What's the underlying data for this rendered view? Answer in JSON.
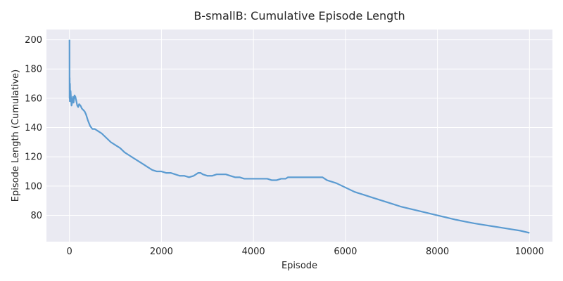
{
  "chart_data": {
    "type": "line",
    "title": "B-smallB: Cumulative Episode Length",
    "xlabel": "Episode",
    "ylabel": "Episode Length (Cumulative)",
    "xlim": [
      -500,
      10500
    ],
    "ylim": [
      62,
      207
    ],
    "xticks": [
      0,
      2000,
      4000,
      6000,
      8000,
      10000
    ],
    "xtick_labels": [
      "0",
      "2000",
      "4000",
      "6000",
      "8000",
      "10000"
    ],
    "yticks": [
      80,
      100,
      120,
      140,
      160,
      180,
      200
    ],
    "ytick_labels": [
      "80",
      "100",
      "120",
      "140",
      "160",
      "180",
      "200"
    ],
    "grid": true,
    "legend": "none",
    "series_color": "#5b9bd1",
    "background_color": "#eaeaf2",
    "grid_color": "#ffffff",
    "series": [
      {
        "x": [
          1,
          3,
          5,
          8,
          12,
          18,
          25,
          35,
          45,
          60,
          75,
          90,
          110,
          130,
          150,
          170,
          190,
          210,
          240,
          270,
          300,
          330,
          360,
          400,
          450,
          500,
          550,
          600,
          650,
          700,
          800,
          900,
          1000,
          1100,
          1200,
          1300,
          1400,
          1500,
          1600,
          1700,
          1800,
          1900,
          2000,
          2100,
          2200,
          2300,
          2400,
          2500,
          2600,
          2700,
          2800,
          2850,
          2900,
          3000,
          3100,
          3200,
          3300,
          3400,
          3500,
          3600,
          3700,
          3800,
          3900,
          4000,
          4100,
          4200,
          4300,
          4400,
          4500,
          4600,
          4700,
          4750,
          4800,
          4900,
          5000,
          5100,
          5200,
          5300,
          5400,
          5500,
          5600,
          5800,
          6000,
          6200,
          6400,
          6600,
          6800,
          7000,
          7200,
          7400,
          7600,
          7800,
          8000,
          8200,
          8400,
          8600,
          8800,
          9000,
          9200,
          9400,
          9600,
          9800,
          10000
        ],
        "y": [
          200,
          160,
          174,
          158,
          170,
          158,
          165,
          160,
          155,
          157,
          161,
          157,
          162,
          161,
          158,
          155,
          154,
          156,
          155,
          153,
          152,
          151,
          149,
          145,
          141,
          139,
          139,
          138,
          137,
          136,
          133,
          130,
          128,
          126,
          123,
          121,
          119,
          117,
          115,
          113,
          111,
          110,
          110,
          109,
          109,
          108,
          107,
          107,
          106,
          107,
          109,
          109,
          108,
          107,
          107,
          108,
          108,
          108,
          107,
          106,
          106,
          105,
          105,
          105,
          105,
          105,
          105,
          104,
          104,
          105,
          105,
          106,
          106,
          106,
          106,
          106,
          106,
          106,
          106,
          106,
          104,
          102,
          99,
          96,
          94,
          92,
          90,
          88,
          86,
          84.5,
          83,
          81.5,
          80,
          78.5,
          77,
          75.7,
          74.5,
          73.5,
          72.5,
          71.5,
          70.5,
          69.5,
          68
        ]
      }
    ]
  }
}
